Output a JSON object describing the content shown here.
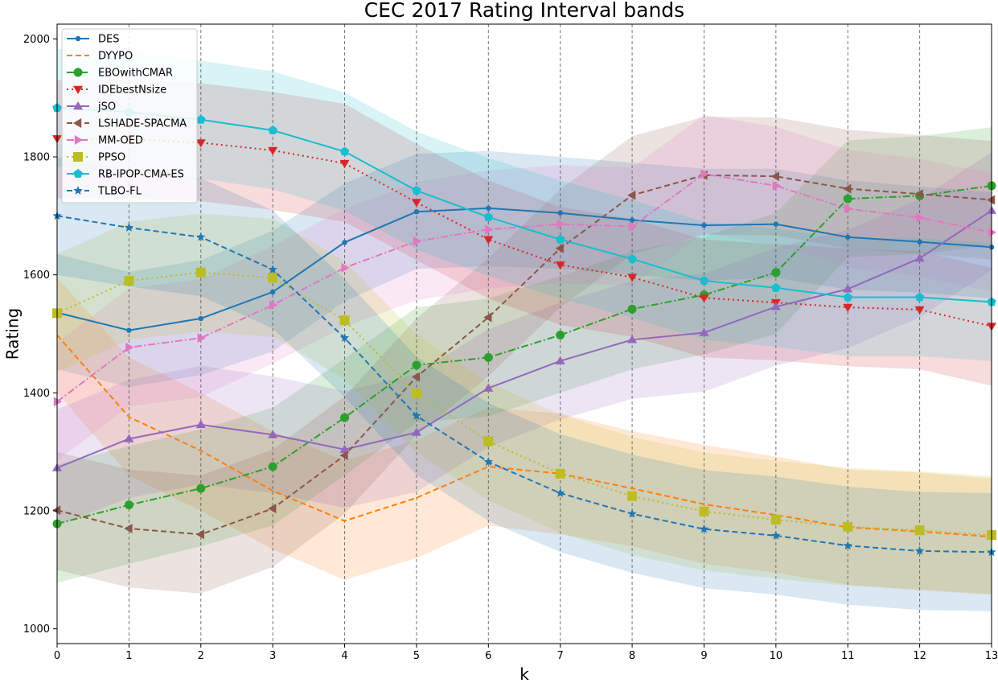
{
  "chart_data": {
    "type": "line",
    "title": "CEC 2017 Rating Interval bands",
    "xlabel": "k",
    "ylabel": "Rating",
    "xlim": [
      0,
      13
    ],
    "ylim": [
      975,
      2025
    ],
    "x": [
      0,
      1,
      2,
      3,
      4,
      5,
      6,
      7,
      8,
      9,
      10,
      11,
      12,
      13
    ],
    "xticks": [
      "0",
      "1",
      "2",
      "3",
      "4",
      "5",
      "6",
      "7",
      "8",
      "9",
      "10",
      "11",
      "12",
      "13"
    ],
    "yticks": [
      "1000",
      "1200",
      "1400",
      "1600",
      "1800",
      "2000"
    ],
    "vertical_dashed_gridlines": true,
    "legend_position": "upper-left",
    "series": [
      {
        "name": "DES",
        "color": "#1f77b4",
        "dash": "solid",
        "marker": "dot",
        "values": [
          1536,
          1506,
          1526,
          1571,
          1655,
          1707,
          1713,
          1705,
          1693,
          1684,
          1686,
          1664,
          1656,
          1647
        ],
        "lower": [
          1440,
          1410,
          1430,
          1470,
          1555,
          1610,
          1615,
          1610,
          1600,
          1590,
          1595,
          1575,
          1570,
          1560
        ],
        "upper": [
          1635,
          1605,
          1625,
          1675,
          1755,
          1805,
          1810,
          1800,
          1790,
          1780,
          1780,
          1760,
          1750,
          1740
        ]
      },
      {
        "name": "DYYPO",
        "color": "#ff7f0e",
        "dash": "dashed",
        "marker": "none",
        "values": [
          1498,
          1359,
          1302,
          1234,
          1183,
          1222,
          1275,
          1263,
          1238,
          1211,
          1193,
          1172,
          1165,
          1156
        ],
        "lower": [
          1400,
          1260,
          1200,
          1135,
          1083,
          1120,
          1175,
          1160,
          1140,
          1110,
          1095,
          1075,
          1065,
          1058
        ],
        "upper": [
          1595,
          1460,
          1400,
          1335,
          1285,
          1320,
          1375,
          1365,
          1335,
          1312,
          1292,
          1270,
          1265,
          1255
        ]
      },
      {
        "name": "EBOwithCMAR",
        "color": "#2ca02c",
        "dash": "dashdot",
        "marker": "circle",
        "values": [
          1178,
          1210,
          1238,
          1275,
          1358,
          1447,
          1460,
          1498,
          1542,
          1566,
          1604,
          1729,
          1734,
          1751
        ],
        "lower": [
          1078,
          1110,
          1140,
          1175,
          1260,
          1350,
          1360,
          1400,
          1440,
          1465,
          1500,
          1630,
          1635,
          1650
        ],
        "upper": [
          1278,
          1310,
          1338,
          1375,
          1458,
          1545,
          1560,
          1598,
          1640,
          1665,
          1705,
          1828,
          1835,
          1850
        ]
      },
      {
        "name": "IDEbestNsize",
        "color": "#d62728",
        "dash": "dotted",
        "marker": "triangle-down",
        "values": [
          1831,
          1830,
          1824,
          1811,
          1789,
          1723,
          1660,
          1617,
          1596,
          1561,
          1553,
          1545,
          1541,
          1513
        ],
        "lower": [
          1730,
          1730,
          1725,
          1710,
          1690,
          1625,
          1560,
          1515,
          1495,
          1460,
          1455,
          1445,
          1440,
          1412
        ],
        "upper": [
          1930,
          1930,
          1925,
          1910,
          1890,
          1822,
          1760,
          1715,
          1695,
          1660,
          1652,
          1645,
          1640,
          1612
        ]
      },
      {
        "name": "jSO",
        "color": "#9467bd",
        "dash": "solid",
        "marker": "triangle-up",
        "values": [
          1273,
          1322,
          1346,
          1329,
          1304,
          1333,
          1408,
          1454,
          1490,
          1502,
          1546,
          1576,
          1628,
          1709
        ],
        "lower": [
          1175,
          1222,
          1245,
          1230,
          1205,
          1232,
          1308,
          1355,
          1390,
          1402,
          1446,
          1476,
          1528,
          1608
        ],
        "upper": [
          1372,
          1422,
          1446,
          1428,
          1403,
          1432,
          1508,
          1553,
          1590,
          1602,
          1646,
          1676,
          1728,
          1808
        ]
      },
      {
        "name": "LSHADE-SPACMA",
        "color": "#8c564b",
        "dash": "dashed",
        "marker": "triangle-left",
        "values": [
          1201,
          1170,
          1160,
          1204,
          1294,
          1427,
          1528,
          1645,
          1735,
          1769,
          1767,
          1746,
          1737,
          1727
        ],
        "lower": [
          1100,
          1070,
          1060,
          1105,
          1195,
          1328,
          1428,
          1545,
          1635,
          1668,
          1667,
          1645,
          1636,
          1626
        ],
        "upper": [
          1300,
          1270,
          1260,
          1304,
          1394,
          1526,
          1628,
          1745,
          1835,
          1868,
          1867,
          1846,
          1837,
          1827
        ]
      },
      {
        "name": "MM-OED",
        "color": "#e377c2",
        "dash": "dashdot",
        "marker": "triangle-right",
        "values": [
          1385,
          1477,
          1493,
          1549,
          1612,
          1657,
          1677,
          1686,
          1682,
          1771,
          1751,
          1712,
          1697,
          1672
        ],
        "lower": [
          1285,
          1377,
          1393,
          1450,
          1512,
          1557,
          1577,
          1586,
          1582,
          1671,
          1651,
          1612,
          1597,
          1572
        ],
        "upper": [
          1485,
          1577,
          1593,
          1649,
          1712,
          1757,
          1777,
          1786,
          1782,
          1871,
          1851,
          1812,
          1797,
          1772
        ]
      },
      {
        "name": "PPSO",
        "color": "#bcbd22",
        "dash": "dotted",
        "marker": "square",
        "values": [
          1535,
          1590,
          1604,
          1595,
          1523,
          1399,
          1318,
          1263,
          1225,
          1199,
          1185,
          1173,
          1167,
          1159
        ],
        "lower": [
          1435,
          1490,
          1504,
          1495,
          1423,
          1299,
          1218,
          1163,
          1125,
          1099,
          1085,
          1073,
          1067,
          1059
        ],
        "upper": [
          1635,
          1690,
          1704,
          1695,
          1623,
          1499,
          1418,
          1363,
          1325,
          1299,
          1285,
          1273,
          1267,
          1259
        ]
      },
      {
        "name": "RB-IPOP-CMA-ES",
        "color": "#17becf",
        "dash": "solid",
        "marker": "pentagon",
        "values": [
          1883,
          1876,
          1863,
          1845,
          1809,
          1743,
          1698,
          1660,
          1627,
          1590,
          1578,
          1562,
          1562,
          1554
        ],
        "lower": [
          1783,
          1776,
          1763,
          1745,
          1709,
          1643,
          1598,
          1560,
          1527,
          1490,
          1478,
          1462,
          1462,
          1454
        ],
        "upper": [
          1983,
          1976,
          1963,
          1945,
          1909,
          1843,
          1798,
          1760,
          1727,
          1690,
          1678,
          1662,
          1662,
          1654
        ]
      },
      {
        "name": "TLBO-FL",
        "color": "#1f77b4",
        "dash": "dashed",
        "marker": "star",
        "values": [
          1700,
          1680,
          1664,
          1609,
          1493,
          1361,
          1283,
          1230,
          1195,
          1169,
          1158,
          1141,
          1132,
          1130
        ],
        "lower": [
          1600,
          1580,
          1564,
          1509,
          1393,
          1261,
          1183,
          1130,
          1095,
          1069,
          1058,
          1041,
          1032,
          1030
        ],
        "upper": [
          1800,
          1780,
          1764,
          1709,
          1593,
          1461,
          1383,
          1330,
          1295,
          1269,
          1258,
          1241,
          1232,
          1230
        ]
      }
    ]
  }
}
